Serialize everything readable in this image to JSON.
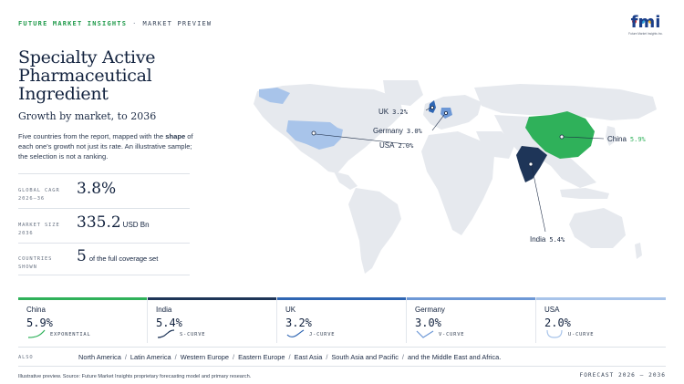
{
  "header": {
    "brand": "FUTURE MARKET INSIGHTS",
    "separator": "·",
    "section": "MARKET PREVIEW"
  },
  "logo": {
    "word": "fmi",
    "tagline": "Future Market Insights Inc.",
    "dot_colors": [
      "#e8342b",
      "#2aa3df",
      "#f0b323"
    ]
  },
  "report": {
    "title": "Specialty Active Pharmaceutical Ingredient",
    "subtitle": "Growth by market, to 2036",
    "description_pre": "Five countries from the report, mapped with the ",
    "description_emph": "shape",
    "description_post": " of each one's growth not just its rate. An illustrative sample; the selection is not a ranking."
  },
  "stats": [
    {
      "label_1": "GLOBAL CAGR",
      "label_2": "2026–36",
      "value": "3.8%",
      "unit": ""
    },
    {
      "label_1": "MARKET SIZE",
      "label_2": "2036",
      "value": "335.2",
      "unit": "USD Bn"
    },
    {
      "label_1": "COUNTRIES",
      "label_2": "SHOWN",
      "value": "5",
      "unit": "of the full coverage set"
    }
  ],
  "map_labels": [
    {
      "country": "UK",
      "value": "3.2%"
    },
    {
      "country": "Germany",
      "value": "3.0%"
    },
    {
      "country": "USA",
      "value": "2.0%"
    },
    {
      "country": "China",
      "value": "5.9%"
    },
    {
      "country": "India",
      "value": "5.4%"
    }
  ],
  "cards": [
    {
      "country": "China",
      "value": "5.9%",
      "shape": "EXPONENTIAL",
      "color": "#2fb15a"
    },
    {
      "country": "India",
      "value": "5.4%",
      "shape": "S-CURVE",
      "color": "#1e3558"
    },
    {
      "country": "UK",
      "value": "3.2%",
      "shape": "J-CURVE",
      "color": "#2f66b3"
    },
    {
      "country": "Germany",
      "value": "3.0%",
      "shape": "V-CURVE",
      "color": "#6d98d6"
    },
    {
      "country": "USA",
      "value": "2.0%",
      "shape": "U-CURVE",
      "color": "#a8c4ea"
    }
  ],
  "also": {
    "label": "ALSO",
    "regions": [
      "North America",
      "Latin America",
      "Western Europe",
      "Eastern Europe",
      "East Asia",
      "South Asia and Pacific",
      "and the Middle East and Africa."
    ]
  },
  "footer": {
    "source": "Illustrative preview. Source: Future Market Insights proprietary forecasting model and primary research.",
    "forecast": "FORECAST 2026 – 2036"
  },
  "colors": {
    "land": "#e6e9ee",
    "china": "#2fb15a",
    "india": "#1e3558",
    "uk": "#2f66b3",
    "germany": "#6d98d6",
    "usa": "#a8c4ea"
  }
}
